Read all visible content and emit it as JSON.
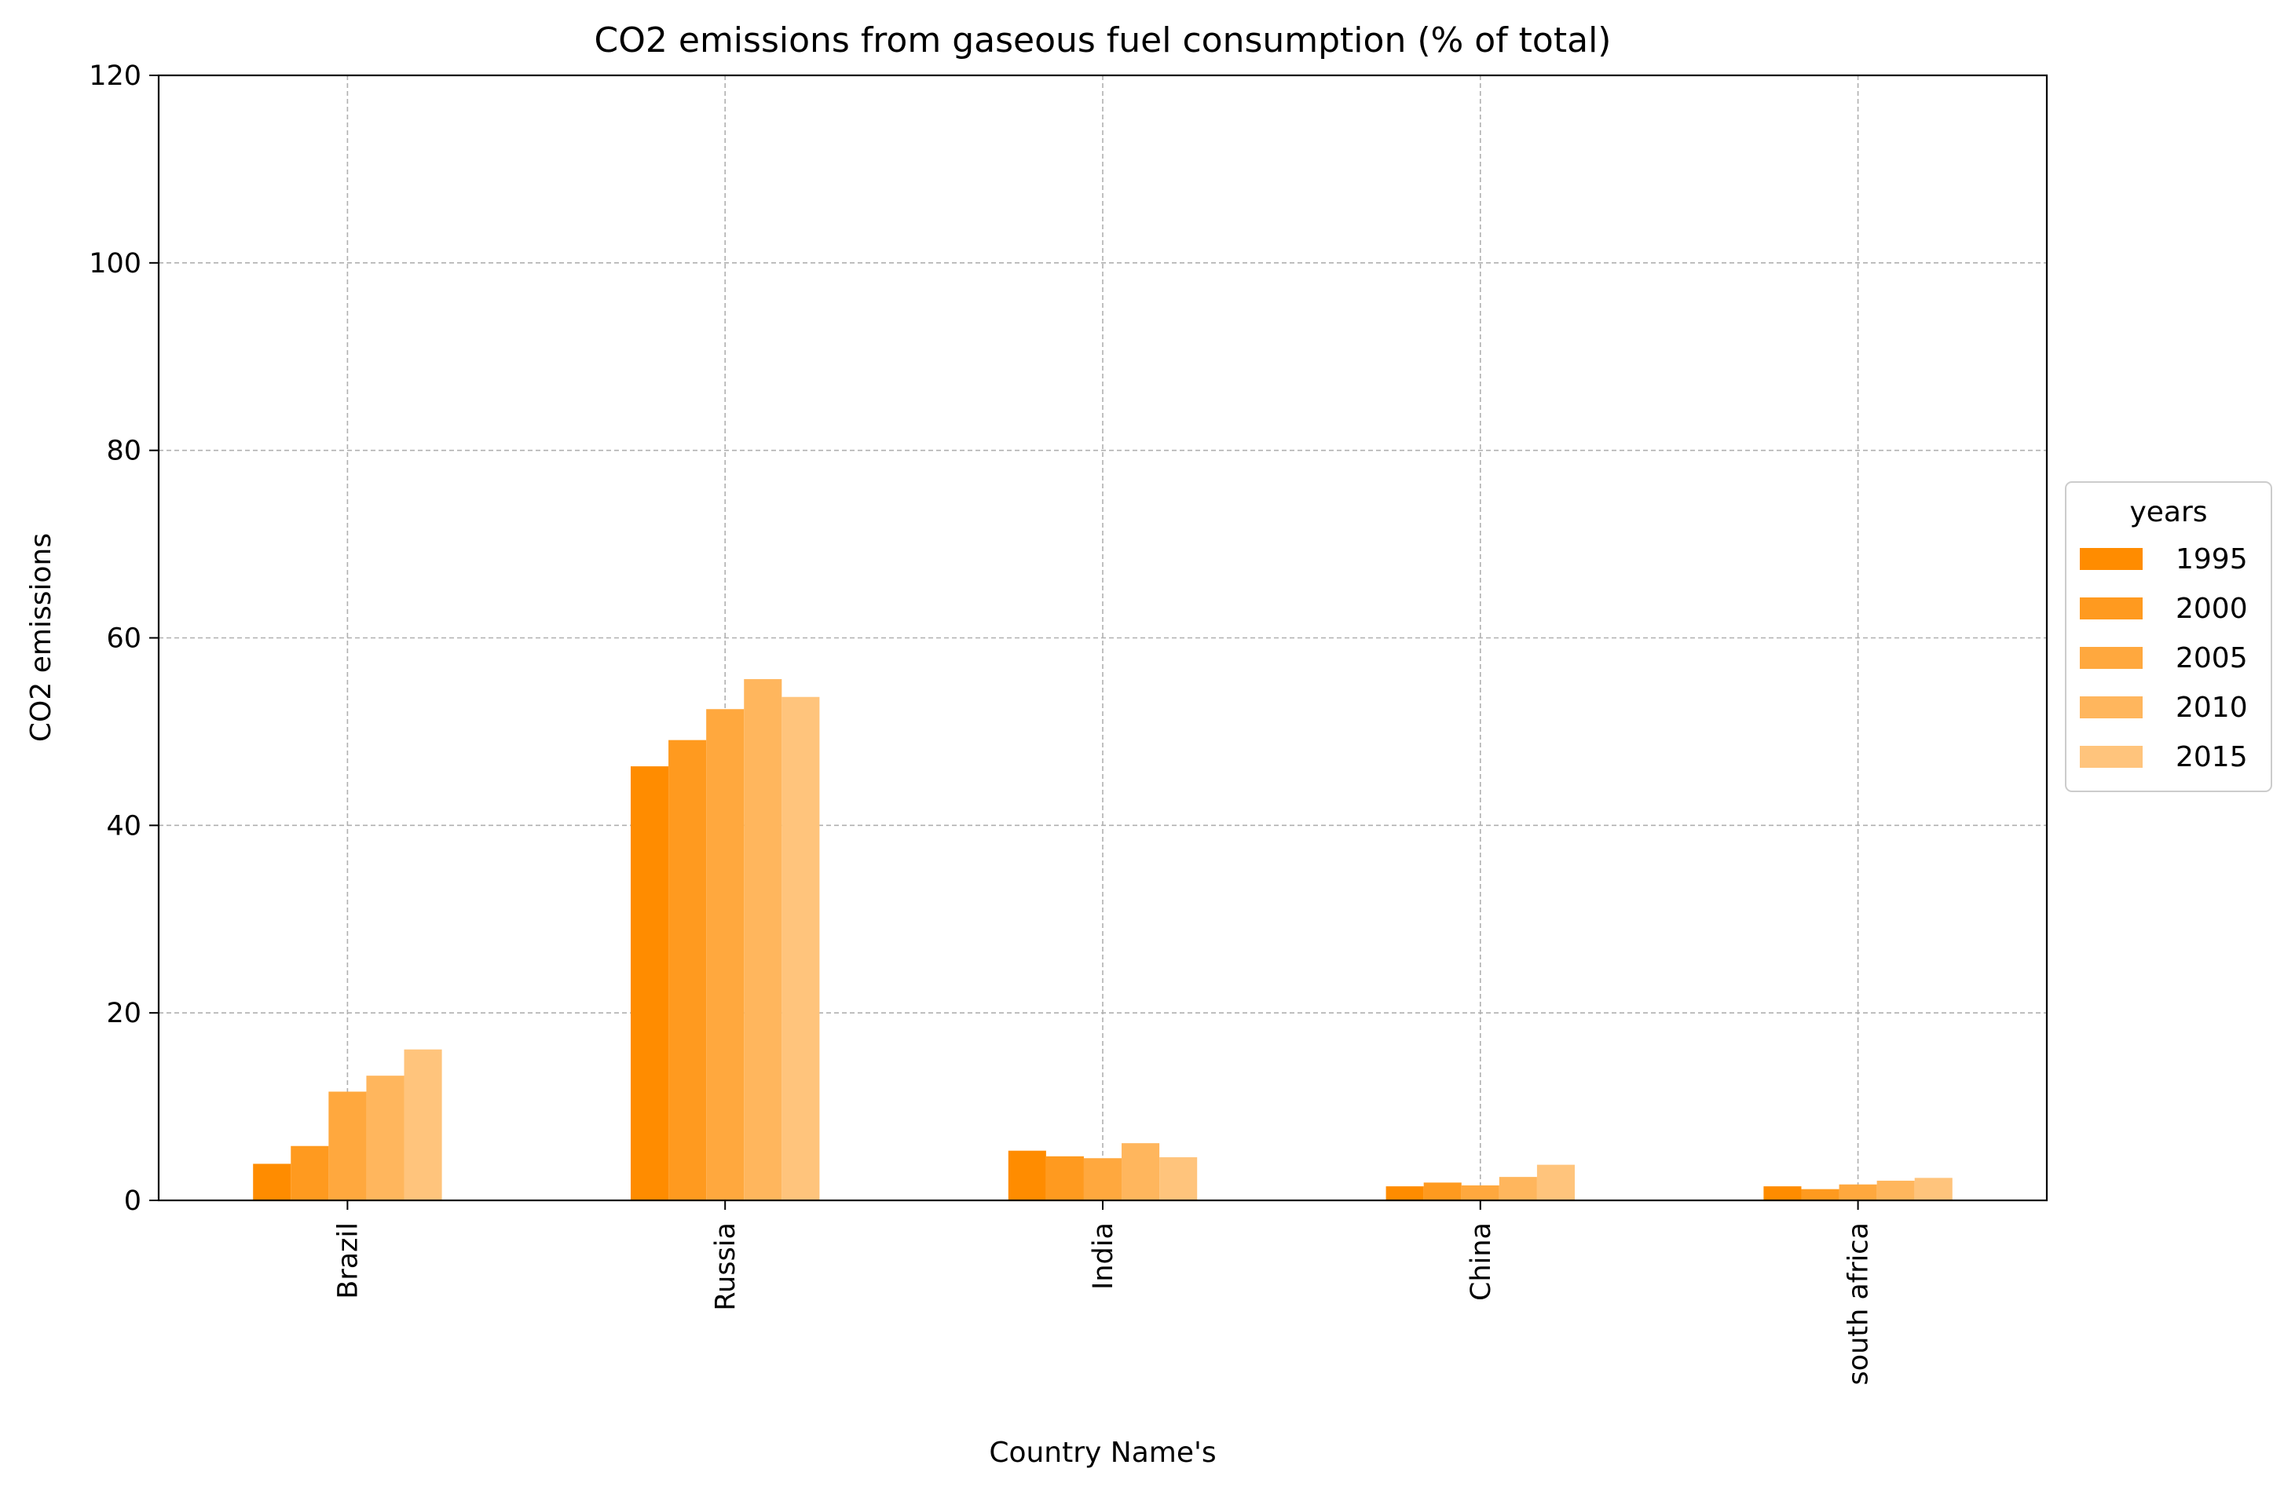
{
  "chart_data": {
    "type": "bar",
    "title": "CO2 emissions from gaseous fuel consumption (% of total)",
    "xlabel": "Country Name's",
    "ylabel": "CO2 emissions",
    "ylim": [
      0,
      120
    ],
    "yticks": [
      0,
      20,
      40,
      60,
      80,
      100,
      120
    ],
    "grid": true,
    "categories": [
      "Brazil",
      "Russia",
      "India",
      "China",
      "south africa"
    ],
    "legend": {
      "title": "years",
      "placement": "center-right-outside"
    },
    "series": [
      {
        "name": "1995",
        "color": "#ff8c00",
        "values": [
          3.9,
          46.3,
          5.3,
          1.5,
          1.5
        ]
      },
      {
        "name": "2000",
        "color": "#ff9a1f",
        "values": [
          5.8,
          49.1,
          4.7,
          1.9,
          1.2
        ]
      },
      {
        "name": "2005",
        "color": "#ffa83e",
        "values": [
          11.6,
          52.4,
          4.5,
          1.6,
          1.7
        ]
      },
      {
        "name": "2010",
        "color": "#ffb65d",
        "values": [
          13.3,
          55.6,
          6.1,
          2.5,
          2.1
        ]
      },
      {
        "name": "2015",
        "color": "#ffc47c",
        "values": [
          16.1,
          53.7,
          4.6,
          3.8,
          2.4
        ]
      }
    ]
  }
}
